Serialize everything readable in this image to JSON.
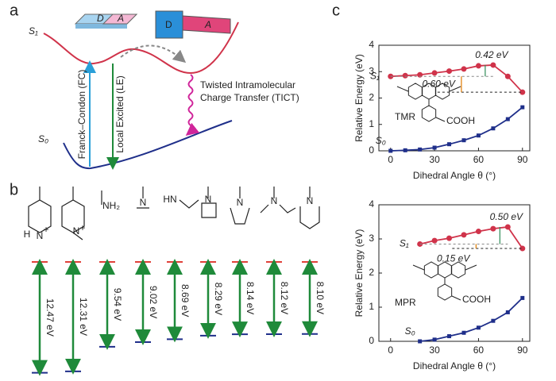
{
  "panel_a": {
    "label": "a",
    "s1": "S₁",
    "s0": "S₀",
    "donor": [
      "D",
      "D"
    ],
    "acceptor": [
      "A",
      "A"
    ],
    "fc": "Franck–Condon (FC)",
    "le": "Local Excited (LE)",
    "tict": [
      "Twisted Intramolecular",
      "Charge Transfer (TICT)"
    ]
  },
  "panel_b": {
    "label": "b",
    "atoms": [
      [
        "H",
        "N",
        "+"
      ],
      [
        "N",
        "+"
      ],
      [
        "NH₂"
      ],
      [
        "N"
      ],
      [
        "HN"
      ],
      [
        "N"
      ],
      [
        "N"
      ],
      [
        "N"
      ],
      [
        "N"
      ]
    ]
  },
  "panel_c": {
    "label": "c"
  },
  "chart_data": [
    {
      "type": "gap",
      "values": [
        12.47,
        12.31,
        9.54,
        9.02,
        8.69,
        8.29,
        8.14,
        8.12,
        8.1
      ],
      "value_labels": [
        "12.47 eV",
        "12.31 eV",
        "9.54 eV",
        "9.02 eV",
        "8.69 eV",
        "8.29 eV",
        "8.14 eV",
        "8.12 eV",
        "8.10 eV"
      ],
      "color": "#1f8a3a",
      "top_color": "#e0413a",
      "bottom_color": "#1f2f8a"
    },
    {
      "type": "line",
      "xlabel": "Dihedral Angle θ (°)",
      "ylabel": "Relative Energy (eV)",
      "xlim": [
        -8,
        95
      ],
      "ylim": [
        0,
        4
      ],
      "xticks": [
        0,
        30,
        60,
        90
      ],
      "yticks": [
        0,
        1,
        2,
        3,
        4
      ],
      "molecule": "TMR",
      "substituent": "COOH",
      "annotations": [
        {
          "text": "0.42 eV",
          "color": "#2e8b57"
        },
        {
          "text": "0.60 eV",
          "color": "#e07b00"
        }
      ],
      "x": [
        0,
        10,
        20,
        30,
        40,
        50,
        60,
        70,
        80,
        90
      ],
      "series": [
        {
          "name": "S₁",
          "color": "#d0334a",
          "values": [
            2.82,
            2.85,
            2.88,
            2.95,
            3.02,
            3.1,
            3.22,
            3.25,
            2.82,
            2.22
          ]
        },
        {
          "name": "S₀",
          "color": "#1f2f8a",
          "values": [
            0,
            0.02,
            0.05,
            0.12,
            0.25,
            0.4,
            0.58,
            0.85,
            1.2,
            1.65
          ]
        }
      ]
    },
    {
      "type": "line",
      "xlabel": "Dihedral Angle θ (°)",
      "ylabel": "Relative Energy (eV)",
      "xlim": [
        -8,
        95
      ],
      "ylim": [
        0,
        4
      ],
      "xticks": [
        0,
        30,
        60,
        90
      ],
      "yticks": [
        0,
        1,
        2,
        3,
        4
      ],
      "molecule": "MPR",
      "substituent": "COOH",
      "annotations": [
        {
          "text": "0.50 eV",
          "color": "#2e8b57"
        },
        {
          "text": "0.15 eV",
          "color": "#e07b00"
        }
      ],
      "x": [
        20,
        30,
        40,
        50,
        60,
        70,
        80,
        90
      ],
      "series": [
        {
          "name": "S₁",
          "color": "#d0334a",
          "values": [
            2.85,
            2.95,
            3.02,
            3.12,
            3.22,
            3.3,
            3.35,
            2.72
          ]
        },
        {
          "name": "S₀",
          "color": "#1f2f8a",
          "values": [
            0,
            0.05,
            0.15,
            0.25,
            0.4,
            0.6,
            0.85,
            1.27
          ]
        }
      ]
    }
  ]
}
